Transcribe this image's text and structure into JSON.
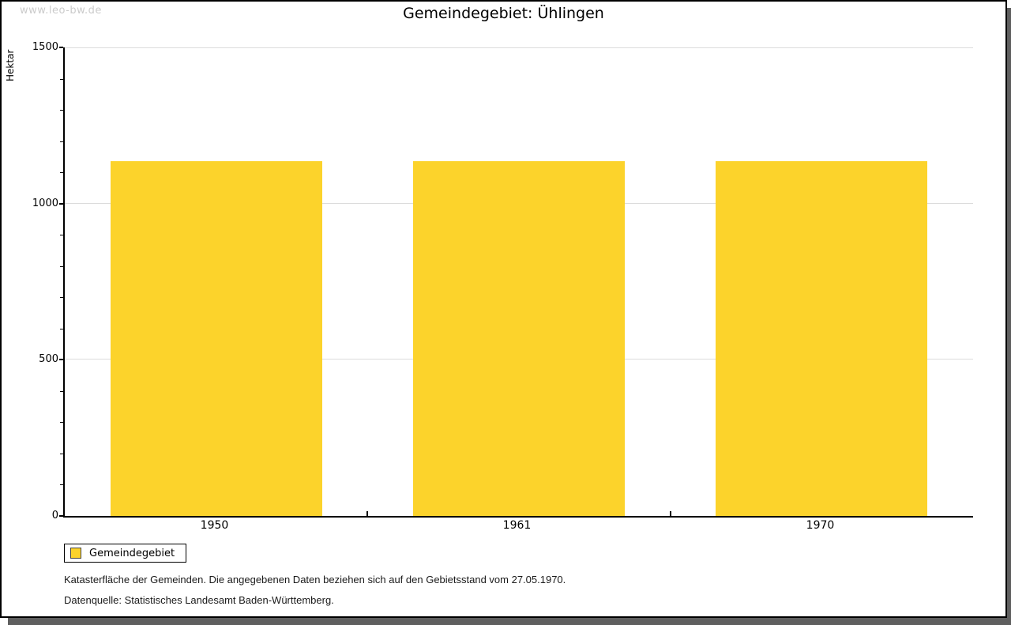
{
  "page": {
    "watermark": "www.leo-bw.de"
  },
  "chart_data": {
    "type": "bar",
    "title": "Gemeindegebiet: Ühlingen",
    "categories": [
      "1950",
      "1961",
      "1970"
    ],
    "series": [
      {
        "name": "Gemeindegebiet",
        "values": [
          1136,
          1136,
          1136
        ]
      }
    ],
    "xlabel": "",
    "ylabel": "Hektar",
    "ylim": [
      0,
      1500
    ],
    "y_major_ticks": [
      0,
      500,
      1000,
      1500
    ],
    "y_minor_step": 100,
    "grid": true,
    "legend_position": "bottom-left"
  },
  "legend": {
    "label": "Gemeindegebiet"
  },
  "footer": {
    "line1": "Katasterfläche der Gemeinden. Die angegebenen Daten beziehen sich auf den Gebietsstand vom 27.05.1970.",
    "line2": "Datenquelle: Statistisches Landesamt Baden-Württemberg."
  },
  "colors": {
    "bar": "#FCD32B",
    "grid": "#DCDCDC",
    "axis": "#000000",
    "watermark": "#CBCBCB",
    "shadow": "#5F5F5F"
  }
}
